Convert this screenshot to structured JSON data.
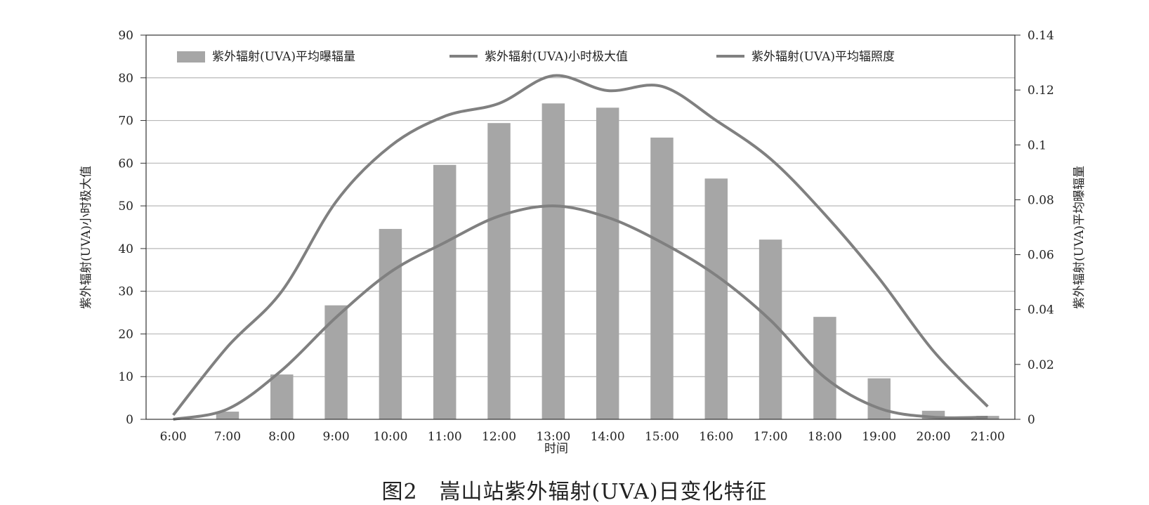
{
  "caption": "图2　嵩山站紫外辐射(UVA)日变化特征",
  "chart_data": {
    "type": "bar",
    "xlabel": "时间",
    "ylabel_left": "紫外辐射(UVA)小时极大值",
    "ylabel_right": "紫外辐射(UVA)平均曝辐量",
    "ylim_left": [
      0,
      90
    ],
    "ylim_right": [
      0,
      0.14
    ],
    "yticks_left": [
      "0",
      "10",
      "20",
      "30",
      "40",
      "50",
      "60",
      "70",
      "80",
      "90"
    ],
    "yticks_right": [
      "0",
      "0.02",
      "0.04",
      "0.06",
      "0.08",
      "0.1",
      "0.12",
      "0.14"
    ],
    "categories": [
      "6:00",
      "7:00",
      "8:00",
      "9:00",
      "10:00",
      "11:00",
      "12:00",
      "13:00",
      "14:00",
      "15:00",
      "16:00",
      "17:00",
      "18:00",
      "19:00",
      "20:00",
      "21:00"
    ],
    "grid": true,
    "legend_position": "top",
    "series": [
      {
        "name": "紫外辐射(UVA)平均曝辐量",
        "type": "bar",
        "axis": "left",
        "color": "#a6a6a6",
        "values": [
          0,
          1.8,
          10.5,
          26.7,
          44.6,
          59.6,
          69.4,
          74.0,
          73.0,
          66.0,
          56.4,
          42.1,
          24.0,
          9.6,
          2.0,
          0.8
        ]
      },
      {
        "name": "紫外辐射(UVA)小时极大值",
        "type": "line",
        "axis": "left",
        "color": "#808080",
        "values": [
          1,
          17,
          30,
          51,
          64,
          71,
          74,
          80.5,
          77,
          78,
          70,
          61,
          48,
          33,
          16,
          3
        ]
      },
      {
        "name": "紫外辐射(UVA)平均辐照度",
        "type": "line",
        "axis": "left",
        "color": "#808080",
        "values": [
          0,
          2.4,
          11.5,
          23.9,
          34.5,
          41.4,
          47.6,
          50.0,
          47.3,
          41.4,
          33.7,
          23.2,
          9.8,
          2.6,
          0.5,
          0.5
        ]
      }
    ]
  }
}
